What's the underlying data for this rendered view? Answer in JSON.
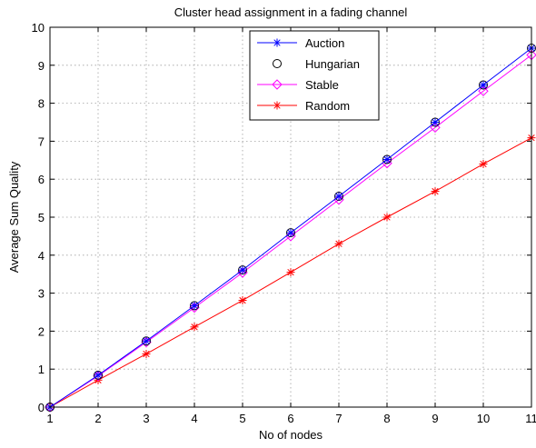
{
  "chart_data": {
    "type": "line",
    "title": "Cluster head assignment in a fading channel",
    "xlabel": "No of nodes",
    "ylabel": "Average Sum Quality",
    "xlim": [
      1,
      11
    ],
    "ylim": [
      0,
      10
    ],
    "xticks": [
      1,
      2,
      3,
      4,
      5,
      6,
      7,
      8,
      9,
      10,
      11
    ],
    "yticks": [
      0,
      1,
      2,
      3,
      4,
      5,
      6,
      7,
      8,
      9,
      10
    ],
    "grid": true,
    "legend_position": "top-center",
    "x": [
      1,
      2,
      3,
      4,
      5,
      6,
      7,
      8,
      9,
      10,
      11
    ],
    "series": [
      {
        "name": "Auction",
        "color": "#0000ff",
        "marker": "asterisk",
        "values": [
          0,
          0.84,
          1.74,
          2.67,
          3.61,
          4.59,
          5.55,
          6.52,
          7.5,
          8.48,
          9.45
        ]
      },
      {
        "name": "Hungarian",
        "color": "#000000",
        "marker": "circle",
        "line": false,
        "values": [
          0,
          0.84,
          1.74,
          2.67,
          3.61,
          4.59,
          5.55,
          6.52,
          7.5,
          8.48,
          9.45
        ]
      },
      {
        "name": "Stable",
        "color": "#ff00ff",
        "marker": "diamond",
        "values": [
          0,
          0.82,
          1.71,
          2.62,
          3.54,
          4.5,
          5.46,
          6.42,
          7.36,
          8.32,
          9.27
        ]
      },
      {
        "name": "Random",
        "color": "#ff0000",
        "marker": "asterisk",
        "values": [
          0,
          0.71,
          1.4,
          2.11,
          2.81,
          3.55,
          4.3,
          5.0,
          5.68,
          6.4,
          7.09
        ]
      }
    ]
  }
}
